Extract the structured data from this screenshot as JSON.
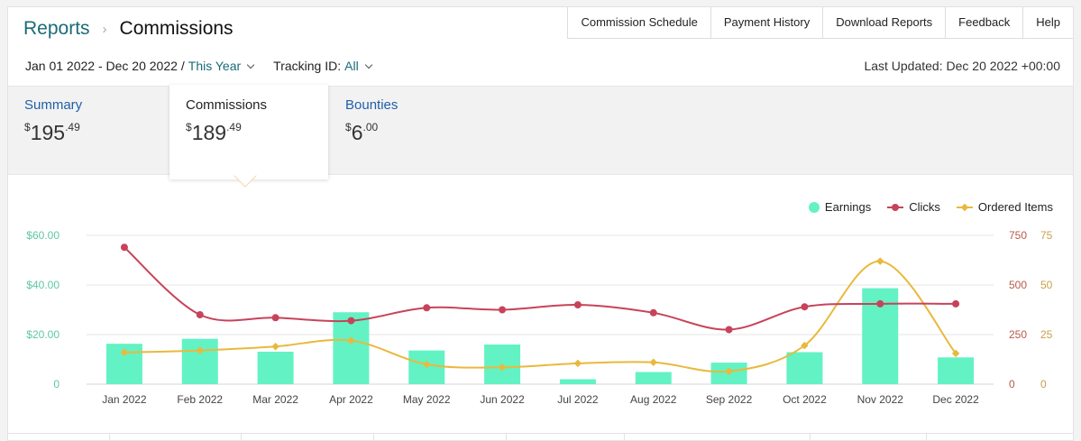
{
  "breadcrumb": {
    "parent": "Reports",
    "current": "Commissions"
  },
  "top_nav": [
    "Commission Schedule",
    "Payment History",
    "Download Reports",
    "Feedback",
    "Help"
  ],
  "filters": {
    "date_range": "Jan 01 2022 - Dec 20 2022",
    "date_sep": "/",
    "preset": "This Year",
    "tracking_label": "Tracking ID:",
    "tracking_value": "All"
  },
  "last_updated": "Last Updated: Dec 20 2022 +00:00",
  "tabs": {
    "summary": {
      "label": "Summary",
      "currency": "$",
      "whole": "195",
      "cents": ".49"
    },
    "commissions": {
      "label": "Commissions",
      "currency": "$",
      "whole": "189",
      "cents": ".49"
    },
    "bounties": {
      "label": "Bounties",
      "currency": "$",
      "whole": "6",
      "cents": ".00"
    }
  },
  "legend": {
    "earnings": "Earnings",
    "clicks": "Clicks",
    "ordered": "Ordered Items"
  },
  "colors": {
    "earnings": "#63f2c4",
    "clicks": "#c7435a",
    "ordered": "#e9b93c",
    "link": "#1a6b76",
    "earnings_axis": "#5fc8a0",
    "clicks_axis": "#b85a4a",
    "ordered_axis": "#c9a04a"
  },
  "chart_data": {
    "type": "bar+line",
    "categories": [
      "Jan 2022",
      "Feb 2022",
      "Mar 2022",
      "Apr 2022",
      "May 2022",
      "Jun 2022",
      "Jul 2022",
      "Aug 2022",
      "Sep 2022",
      "Oct 2022",
      "Nov 2022",
      "Dec 2022"
    ],
    "series": [
      {
        "name": "Earnings",
        "type": "bar",
        "axis": "left",
        "values": [
          16.3,
          18.3,
          13.1,
          29.0,
          13.6,
          16.0,
          2.0,
          4.9,
          8.7,
          12.9,
          38.7,
          10.8
        ]
      },
      {
        "name": "Clicks",
        "type": "line",
        "axis": "right1",
        "values": [
          690,
          350,
          335,
          320,
          385,
          375,
          400,
          360,
          275,
          390,
          405,
          405
        ]
      },
      {
        "name": "Ordered Items",
        "type": "line",
        "axis": "right2",
        "values": [
          16,
          17,
          19,
          22,
          10,
          8.5,
          10.5,
          11,
          6.5,
          19.5,
          62,
          15.5
        ]
      }
    ],
    "y_left": {
      "min": 0,
      "max": 60,
      "ticks": [
        "0",
        "$20.00",
        "$40.00",
        "$60.00"
      ]
    },
    "y_right1": {
      "min": 0,
      "max": 750,
      "ticks": [
        "0",
        "250",
        "500",
        "750"
      ]
    },
    "y_right2": {
      "min": 0,
      "max": 75,
      "ticks": [
        "0",
        "25",
        "50",
        "75"
      ]
    },
    "grid": true,
    "legend": "top-right"
  }
}
